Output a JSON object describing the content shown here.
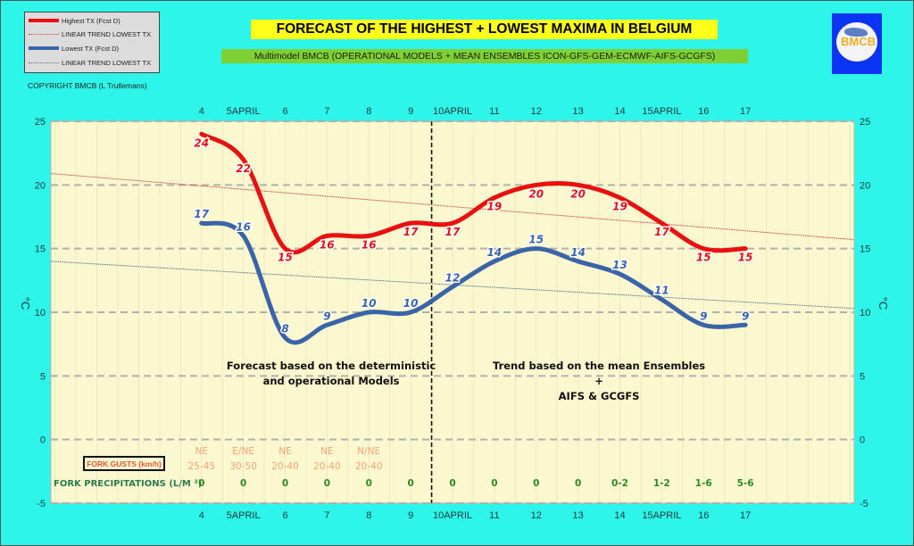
{
  "chart_data": {
    "type": "line",
    "title": "FORECAST OF THE HIGHEST + LOWEST MAXIMA IN BELGIUM",
    "subtitle": "Multimodel BMCB (OPERATIONAL MODELS + MEAN ENSEMBLES  ICON-GFS-GEM-ECMWF-AIFS-GCGFS)",
    "xlabel": "",
    "ylabel": "°C",
    "ylabel_right": "°C",
    "ylim": [
      -5,
      25
    ],
    "yticks": [
      -5,
      0,
      5,
      10,
      15,
      20,
      25
    ],
    "x": [
      4,
      5,
      6,
      7,
      8,
      9,
      10,
      11,
      12,
      13,
      14,
      15,
      16,
      17
    ],
    "x_tick_labels": [
      "4",
      "5APRIL",
      "6",
      "7",
      "8",
      "9",
      "10APRIL",
      "11",
      "12",
      "13",
      "14",
      "15APRIL",
      "16",
      "17"
    ],
    "xlim": [
      0.4,
      19.6
    ],
    "grid": true,
    "legend_position": "top-left",
    "series": [
      {
        "name": "Highest TX (Fcst D)",
        "color": "#e81010",
        "values": [
          24,
          22,
          15,
          16,
          16,
          17,
          17,
          19,
          20,
          20,
          19,
          17,
          15,
          15
        ]
      },
      {
        "name": "Lowest TX (Fcst D)",
        "color": "#3a64a8",
        "values": [
          17,
          16,
          8,
          9,
          10,
          10,
          12,
          14,
          15,
          14,
          13,
          11,
          9,
          9
        ]
      }
    ],
    "trend_lines": [
      {
        "name": "LINEAR TREND LOWEST  TX",
        "color": "#d04040",
        "start": 20.9,
        "end": 15.7
      },
      {
        "name": "LINEAR TREND LOWEST TX",
        "color": "#5a6f8a",
        "start": 14.0,
        "end": 10.3
      }
    ],
    "divider_between": [
      9,
      10
    ],
    "annotations": {
      "left_note": [
        "Forecast based on the deterministic",
        "and operational Models"
      ],
      "right_note": [
        "Trend based on the mean Ensembles",
        "+",
        "AIFS & GCGFS"
      ]
    },
    "gusts": {
      "label": "FORK GUSTS (km/h)",
      "direction": [
        "NE",
        "E/NE",
        "NE",
        "NE",
        "N/NE"
      ],
      "range": [
        "25-45",
        "30-50",
        "20-40",
        "20-40",
        "20-40"
      ]
    },
    "precipitation": {
      "label": "FORK PRECIPITATIONS (L/M ²)",
      "values": [
        "0",
        "0",
        "0",
        "0",
        "0",
        "0",
        "0",
        "0",
        "0",
        "0",
        "0-2",
        "1-2",
        "1-6",
        "5-6"
      ]
    }
  },
  "legend": {
    "items": [
      {
        "label": "Highest TX (Fcst D)",
        "style": "thick",
        "color": "#e81010"
      },
      {
        "label": "LINEAR TREND LOWEST  TX",
        "style": "dotted",
        "color": "#d04040"
      },
      {
        "label": "Lowest TX (Fcst D)",
        "style": "thick",
        "color": "#3a64a8"
      },
      {
        "label": "LINEAR TREND LOWEST TX",
        "style": "dotted",
        "color": "#5a6f8a"
      }
    ]
  },
  "copyright": "COPYRIGHT BMCB (L Trullemans)",
  "logo": {
    "text": "BMCB"
  },
  "colors": {
    "background": "#2ef5ea",
    "plot_bg": "#fbf8d0",
    "title_bg": "#ffff1a",
    "subtitle_bg": "#7fd133"
  }
}
